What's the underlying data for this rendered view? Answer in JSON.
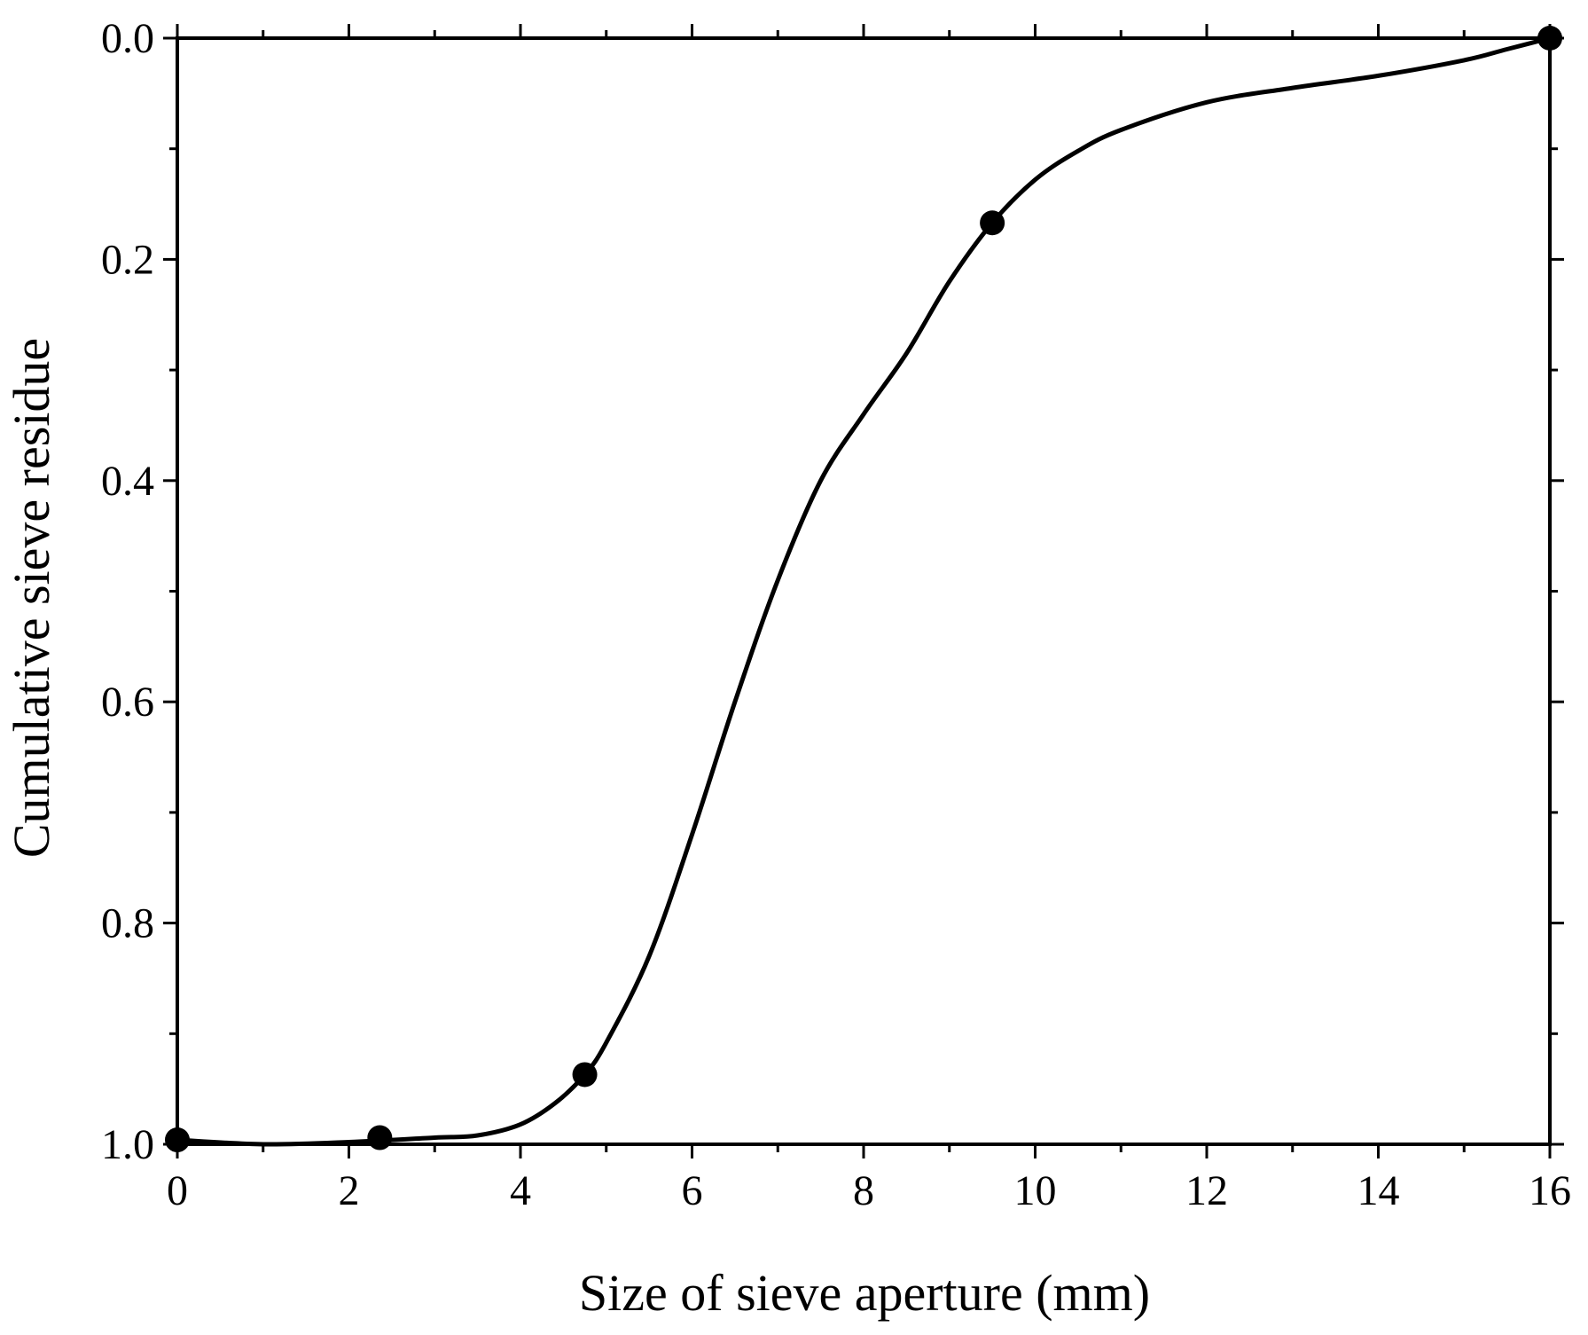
{
  "chart_data": {
    "type": "line",
    "title": "",
    "xlabel": "Size of sieve aperture (mm)",
    "ylabel": "Cumulative sieve residue",
    "xlim": [
      0,
      16
    ],
    "ylim": [
      0.0,
      1.0
    ],
    "y_axis_inverted": true,
    "grid": false,
    "legend": "none",
    "x_ticks": [
      0,
      2,
      4,
      6,
      8,
      10,
      12,
      14,
      16
    ],
    "x_tick_labels": [
      "0",
      "2",
      "4",
      "6",
      "8",
      "10",
      "12",
      "14",
      "16"
    ],
    "y_ticks": [
      0.0,
      0.2,
      0.4,
      0.6,
      0.8,
      1.0
    ],
    "y_tick_labels": [
      "0.0",
      "0.2",
      "0.4",
      "0.6",
      "0.8",
      "1.0"
    ],
    "x_minor_step": 1,
    "y_minor_step": 0.1,
    "series": [
      {
        "marker": "filled-circle",
        "points": [
          {
            "x": 0,
            "y": 0.996
          },
          {
            "x": 2.36,
            "y": 0.994
          },
          {
            "x": 4.75,
            "y": 0.937
          },
          {
            "x": 9.5,
            "y": 0.167
          },
          {
            "x": 16,
            "y": 0.0
          }
        ],
        "curve": [
          {
            "x": 0,
            "y": 0.996
          },
          {
            "x": 1.0,
            "y": 1.0
          },
          {
            "x": 2.0,
            "y": 0.998
          },
          {
            "x": 3.0,
            "y": 0.994
          },
          {
            "x": 3.5,
            "y": 0.992
          },
          {
            "x": 4.0,
            "y": 0.982
          },
          {
            "x": 4.4,
            "y": 0.963
          },
          {
            "x": 4.75,
            "y": 0.937
          },
          {
            "x": 5.0,
            "y": 0.908
          },
          {
            "x": 5.5,
            "y": 0.83
          },
          {
            "x": 6.0,
            "y": 0.72
          },
          {
            "x": 6.5,
            "y": 0.6
          },
          {
            "x": 7.0,
            "y": 0.49
          },
          {
            "x": 7.5,
            "y": 0.4
          },
          {
            "x": 8.0,
            "y": 0.34
          },
          {
            "x": 8.5,
            "y": 0.285
          },
          {
            "x": 9.0,
            "y": 0.22
          },
          {
            "x": 9.5,
            "y": 0.167
          },
          {
            "x": 10.0,
            "y": 0.128
          },
          {
            "x": 10.5,
            "y": 0.102
          },
          {
            "x": 11.0,
            "y": 0.083
          },
          {
            "x": 12.0,
            "y": 0.058
          },
          {
            "x": 13.0,
            "y": 0.045
          },
          {
            "x": 14.0,
            "y": 0.034
          },
          {
            "x": 15.0,
            "y": 0.02
          },
          {
            "x": 15.5,
            "y": 0.01
          },
          {
            "x": 16.0,
            "y": 0.0
          }
        ]
      }
    ],
    "colors": {
      "line": "#000000",
      "marker": "#000000",
      "axes": "#000000",
      "background": "#ffffff"
    }
  }
}
